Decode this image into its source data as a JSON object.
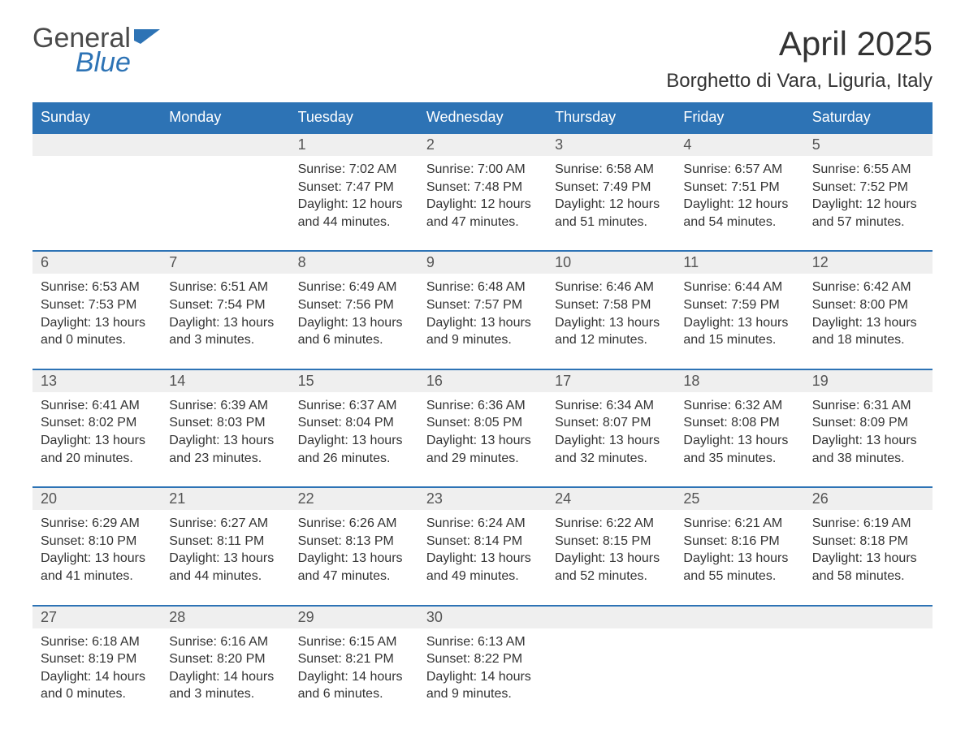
{
  "brand": {
    "word1": "General",
    "word2": "Blue",
    "text_color": "#4a4a4a",
    "accent_color": "#2d73b5"
  },
  "title": "April 2025",
  "location": "Borghetto di Vara, Liguria, Italy",
  "colors": {
    "header_bg": "#2d73b5",
    "header_text": "#ffffff",
    "daynum_bg": "#efefef",
    "daynum_border": "#2d73b5",
    "body_text": "#333333",
    "page_bg": "#ffffff"
  },
  "fonts": {
    "title_size_pt": 32,
    "location_size_pt": 18,
    "header_size_pt": 14,
    "daynum_size_pt": 14,
    "detail_size_pt": 12
  },
  "day_headers": [
    "Sunday",
    "Monday",
    "Tuesday",
    "Wednesday",
    "Thursday",
    "Friday",
    "Saturday"
  ],
  "weeks": [
    {
      "days": [
        null,
        null,
        {
          "num": "1",
          "sunrise": "Sunrise: 7:02 AM",
          "sunset": "Sunset: 7:47 PM",
          "daylight": "Daylight: 12 hours and 44 minutes."
        },
        {
          "num": "2",
          "sunrise": "Sunrise: 7:00 AM",
          "sunset": "Sunset: 7:48 PM",
          "daylight": "Daylight: 12 hours and 47 minutes."
        },
        {
          "num": "3",
          "sunrise": "Sunrise: 6:58 AM",
          "sunset": "Sunset: 7:49 PM",
          "daylight": "Daylight: 12 hours and 51 minutes."
        },
        {
          "num": "4",
          "sunrise": "Sunrise: 6:57 AM",
          "sunset": "Sunset: 7:51 PM",
          "daylight": "Daylight: 12 hours and 54 minutes."
        },
        {
          "num": "5",
          "sunrise": "Sunrise: 6:55 AM",
          "sunset": "Sunset: 7:52 PM",
          "daylight": "Daylight: 12 hours and 57 minutes."
        }
      ]
    },
    {
      "days": [
        {
          "num": "6",
          "sunrise": "Sunrise: 6:53 AM",
          "sunset": "Sunset: 7:53 PM",
          "daylight": "Daylight: 13 hours and 0 minutes."
        },
        {
          "num": "7",
          "sunrise": "Sunrise: 6:51 AM",
          "sunset": "Sunset: 7:54 PM",
          "daylight": "Daylight: 13 hours and 3 minutes."
        },
        {
          "num": "8",
          "sunrise": "Sunrise: 6:49 AM",
          "sunset": "Sunset: 7:56 PM",
          "daylight": "Daylight: 13 hours and 6 minutes."
        },
        {
          "num": "9",
          "sunrise": "Sunrise: 6:48 AM",
          "sunset": "Sunset: 7:57 PM",
          "daylight": "Daylight: 13 hours and 9 minutes."
        },
        {
          "num": "10",
          "sunrise": "Sunrise: 6:46 AM",
          "sunset": "Sunset: 7:58 PM",
          "daylight": "Daylight: 13 hours and 12 minutes."
        },
        {
          "num": "11",
          "sunrise": "Sunrise: 6:44 AM",
          "sunset": "Sunset: 7:59 PM",
          "daylight": "Daylight: 13 hours and 15 minutes."
        },
        {
          "num": "12",
          "sunrise": "Sunrise: 6:42 AM",
          "sunset": "Sunset: 8:00 PM",
          "daylight": "Daylight: 13 hours and 18 minutes."
        }
      ]
    },
    {
      "days": [
        {
          "num": "13",
          "sunrise": "Sunrise: 6:41 AM",
          "sunset": "Sunset: 8:02 PM",
          "daylight": "Daylight: 13 hours and 20 minutes."
        },
        {
          "num": "14",
          "sunrise": "Sunrise: 6:39 AM",
          "sunset": "Sunset: 8:03 PM",
          "daylight": "Daylight: 13 hours and 23 minutes."
        },
        {
          "num": "15",
          "sunrise": "Sunrise: 6:37 AM",
          "sunset": "Sunset: 8:04 PM",
          "daylight": "Daylight: 13 hours and 26 minutes."
        },
        {
          "num": "16",
          "sunrise": "Sunrise: 6:36 AM",
          "sunset": "Sunset: 8:05 PM",
          "daylight": "Daylight: 13 hours and 29 minutes."
        },
        {
          "num": "17",
          "sunrise": "Sunrise: 6:34 AM",
          "sunset": "Sunset: 8:07 PM",
          "daylight": "Daylight: 13 hours and 32 minutes."
        },
        {
          "num": "18",
          "sunrise": "Sunrise: 6:32 AM",
          "sunset": "Sunset: 8:08 PM",
          "daylight": "Daylight: 13 hours and 35 minutes."
        },
        {
          "num": "19",
          "sunrise": "Sunrise: 6:31 AM",
          "sunset": "Sunset: 8:09 PM",
          "daylight": "Daylight: 13 hours and 38 minutes."
        }
      ]
    },
    {
      "days": [
        {
          "num": "20",
          "sunrise": "Sunrise: 6:29 AM",
          "sunset": "Sunset: 8:10 PM",
          "daylight": "Daylight: 13 hours and 41 minutes."
        },
        {
          "num": "21",
          "sunrise": "Sunrise: 6:27 AM",
          "sunset": "Sunset: 8:11 PM",
          "daylight": "Daylight: 13 hours and 44 minutes."
        },
        {
          "num": "22",
          "sunrise": "Sunrise: 6:26 AM",
          "sunset": "Sunset: 8:13 PM",
          "daylight": "Daylight: 13 hours and 47 minutes."
        },
        {
          "num": "23",
          "sunrise": "Sunrise: 6:24 AM",
          "sunset": "Sunset: 8:14 PM",
          "daylight": "Daylight: 13 hours and 49 minutes."
        },
        {
          "num": "24",
          "sunrise": "Sunrise: 6:22 AM",
          "sunset": "Sunset: 8:15 PM",
          "daylight": "Daylight: 13 hours and 52 minutes."
        },
        {
          "num": "25",
          "sunrise": "Sunrise: 6:21 AM",
          "sunset": "Sunset: 8:16 PM",
          "daylight": "Daylight: 13 hours and 55 minutes."
        },
        {
          "num": "26",
          "sunrise": "Sunrise: 6:19 AM",
          "sunset": "Sunset: 8:18 PM",
          "daylight": "Daylight: 13 hours and 58 minutes."
        }
      ]
    },
    {
      "days": [
        {
          "num": "27",
          "sunrise": "Sunrise: 6:18 AM",
          "sunset": "Sunset: 8:19 PM",
          "daylight": "Daylight: 14 hours and 0 minutes."
        },
        {
          "num": "28",
          "sunrise": "Sunrise: 6:16 AM",
          "sunset": "Sunset: 8:20 PM",
          "daylight": "Daylight: 14 hours and 3 minutes."
        },
        {
          "num": "29",
          "sunrise": "Sunrise: 6:15 AM",
          "sunset": "Sunset: 8:21 PM",
          "daylight": "Daylight: 14 hours and 6 minutes."
        },
        {
          "num": "30",
          "sunrise": "Sunrise: 6:13 AM",
          "sunset": "Sunset: 8:22 PM",
          "daylight": "Daylight: 14 hours and 9 minutes."
        },
        null,
        null,
        null
      ]
    }
  ]
}
